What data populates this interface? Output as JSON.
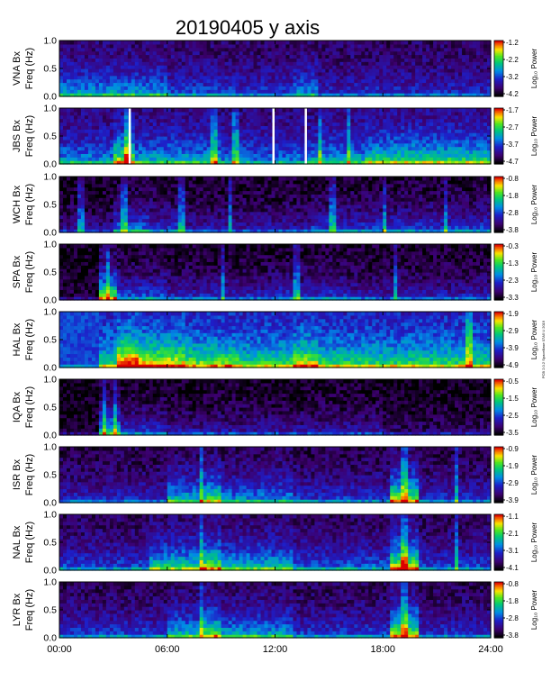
{
  "chart_data": {
    "type": "heatmap",
    "title": "20190405 y axis",
    "side_note": "PCB 2.0.2 SpaceBase 07A5 U 2019",
    "xlabel": "",
    "xlim": [
      0,
      24
    ],
    "x_ticks": [
      "00:00",
      "06:00",
      "12:00",
      "18:00",
      "24:00"
    ],
    "ylim": [
      0,
      1.0
    ],
    "y_ticks": [
      "0.0",
      "0.5",
      "1.0"
    ],
    "colorbar_label": "Log₁₀ Power",
    "panels": [
      {
        "station": "VNA",
        "ylabel_1": "VNA Bx",
        "ylabel_2": "Freq (Hz)",
        "cbar_ticks": [
          "-1.2",
          "-2.2",
          "-3.2",
          "-4.2"
        ],
        "base": 0.18,
        "activity": [
          [
            0,
            6,
            0.45
          ],
          [
            6,
            10,
            0.3
          ],
          [
            10,
            13,
            0.25
          ],
          [
            13,
            14.5,
            0.4
          ],
          [
            14.5,
            24,
            0.22
          ]
        ],
        "bursts": [],
        "gaps": [],
        "dark_before": null
      },
      {
        "station": "JBS",
        "ylabel_1": "JBS Bx",
        "ylabel_2": "Freq (Hz)",
        "cbar_ticks": [
          "-1.7",
          "-2.7",
          "-3.7",
          "-4.7"
        ],
        "base": 0.22,
        "activity": [
          [
            0,
            3,
            0.4
          ],
          [
            3,
            4.2,
            0.75
          ],
          [
            4.2,
            9,
            0.45
          ],
          [
            9,
            14,
            0.35
          ],
          [
            14,
            17,
            0.45
          ],
          [
            17,
            24,
            0.6
          ]
        ],
        "bursts": [
          3.8,
          8.6,
          9.8,
          14.5,
          16.1
        ],
        "gaps": [
          3.9,
          11.9,
          13.7
        ],
        "dark_before": null
      },
      {
        "station": "WCH",
        "ylabel_1": "WCH Bx",
        "ylabel_2": "Freq (Hz)",
        "cbar_ticks": [
          "-0.8",
          "-1.8",
          "-2.8",
          "-3.8"
        ],
        "base": 0.05,
        "activity": [
          [
            0,
            3,
            0.18
          ],
          [
            3,
            5,
            0.45
          ],
          [
            5,
            7,
            0.35
          ],
          [
            7,
            14,
            0.25
          ],
          [
            14,
            24,
            0.35
          ]
        ],
        "bursts": [
          1.2,
          3.6,
          6.8,
          9.5,
          15.2,
          18.1,
          21.5
        ],
        "gaps": [],
        "dark_before": null
      },
      {
        "station": "SPA",
        "ylabel_1": "SPA Bx",
        "ylabel_2": "Freq (Hz)",
        "cbar_ticks": [
          "-0.3",
          "-1.3",
          "-2.3",
          "-3.3"
        ],
        "base": 0.04,
        "activity": [
          [
            0,
            2.2,
            0.05
          ],
          [
            2.2,
            3.2,
            0.85
          ],
          [
            3.2,
            6,
            0.4
          ],
          [
            6,
            12,
            0.3
          ],
          [
            12,
            16,
            0.35
          ],
          [
            16,
            24,
            0.28
          ]
        ],
        "bursts": [
          2.7,
          9.1,
          13.2,
          18.7
        ],
        "gaps": [],
        "dark_before": null
      },
      {
        "station": "HAL",
        "ylabel_1": "HAL Bx",
        "ylabel_2": "Freq (Hz)",
        "cbar_ticks": [
          "-1.9",
          "-2.9",
          "-3.9",
          "-4.9"
        ],
        "base": 0.4,
        "activity": [
          [
            0,
            2.2,
            0.55
          ],
          [
            2.2,
            3.2,
            0.5
          ],
          [
            3.2,
            4.5,
            0.95
          ],
          [
            4.5,
            7,
            0.75
          ],
          [
            7,
            10,
            0.6
          ],
          [
            10,
            13,
            0.5
          ],
          [
            13,
            14.5,
            0.7
          ],
          [
            14.5,
            24,
            0.5
          ]
        ],
        "bursts": [
          22.8
        ],
        "gaps": [],
        "dark_before": 2.2
      },
      {
        "station": "IQA",
        "ylabel_1": "IQA Bx",
        "ylabel_2": "Freq (Hz)",
        "cbar_ticks": [
          "-0.5",
          "-1.5",
          "-2.5",
          "-3.5"
        ],
        "base": 0.03,
        "activity": [
          [
            0,
            2.2,
            0.05
          ],
          [
            2.2,
            3.5,
            0.6
          ],
          [
            3.5,
            6,
            0.35
          ],
          [
            6,
            13,
            0.25
          ],
          [
            13,
            18,
            0.25
          ],
          [
            18,
            24,
            0.15
          ]
        ],
        "bursts": [
          2.5,
          3.1
        ],
        "gaps": [],
        "dark_before": null
      },
      {
        "station": "ISR",
        "ylabel_1": "ISR Bx",
        "ylabel_2": "Freq (Hz)",
        "cbar_ticks": [
          "-0.9",
          "-1.9",
          "-2.9",
          "-3.9"
        ],
        "base": 0.12,
        "activity": [
          [
            0,
            6,
            0.25
          ],
          [
            6,
            8,
            0.55
          ],
          [
            8,
            9,
            0.7
          ],
          [
            9,
            13,
            0.45
          ],
          [
            13,
            18.5,
            0.3
          ],
          [
            18.5,
            20,
            0.8
          ],
          [
            20,
            24,
            0.28
          ]
        ],
        "bursts": [
          7.9,
          19.2,
          22.1
        ],
        "gaps": [],
        "dark_before": null
      },
      {
        "station": "NAL",
        "ylabel_1": "NAL Bx",
        "ylabel_2": "Freq (Hz)",
        "cbar_ticks": [
          "-1.1",
          "-2.1",
          "-3.1",
          "-4.1"
        ],
        "base": 0.15,
        "activity": [
          [
            0,
            5,
            0.3
          ],
          [
            5,
            8,
            0.6
          ],
          [
            8,
            9,
            0.8
          ],
          [
            9,
            13,
            0.55
          ],
          [
            13,
            18.5,
            0.35
          ],
          [
            18.5,
            20,
            0.85
          ],
          [
            20,
            24,
            0.3
          ]
        ],
        "bursts": [
          7.9,
          19.2,
          22.1
        ],
        "gaps": [],
        "dark_before": null
      },
      {
        "station": "LYR",
        "ylabel_1": "LYR Bx",
        "ylabel_2": "Freq (Hz)",
        "cbar_ticks": [
          "-0.8",
          "-1.8",
          "-2.8",
          "-3.8"
        ],
        "base": 0.14,
        "activity": [
          [
            0,
            6,
            0.3
          ],
          [
            6,
            8,
            0.55
          ],
          [
            8,
            9,
            0.75
          ],
          [
            9,
            13,
            0.5
          ],
          [
            13,
            18.5,
            0.3
          ],
          [
            18.5,
            20,
            0.8
          ],
          [
            20,
            24,
            0.28
          ]
        ],
        "bursts": [
          7.9,
          19.2
        ],
        "gaps": [],
        "dark_before": null
      }
    ]
  }
}
